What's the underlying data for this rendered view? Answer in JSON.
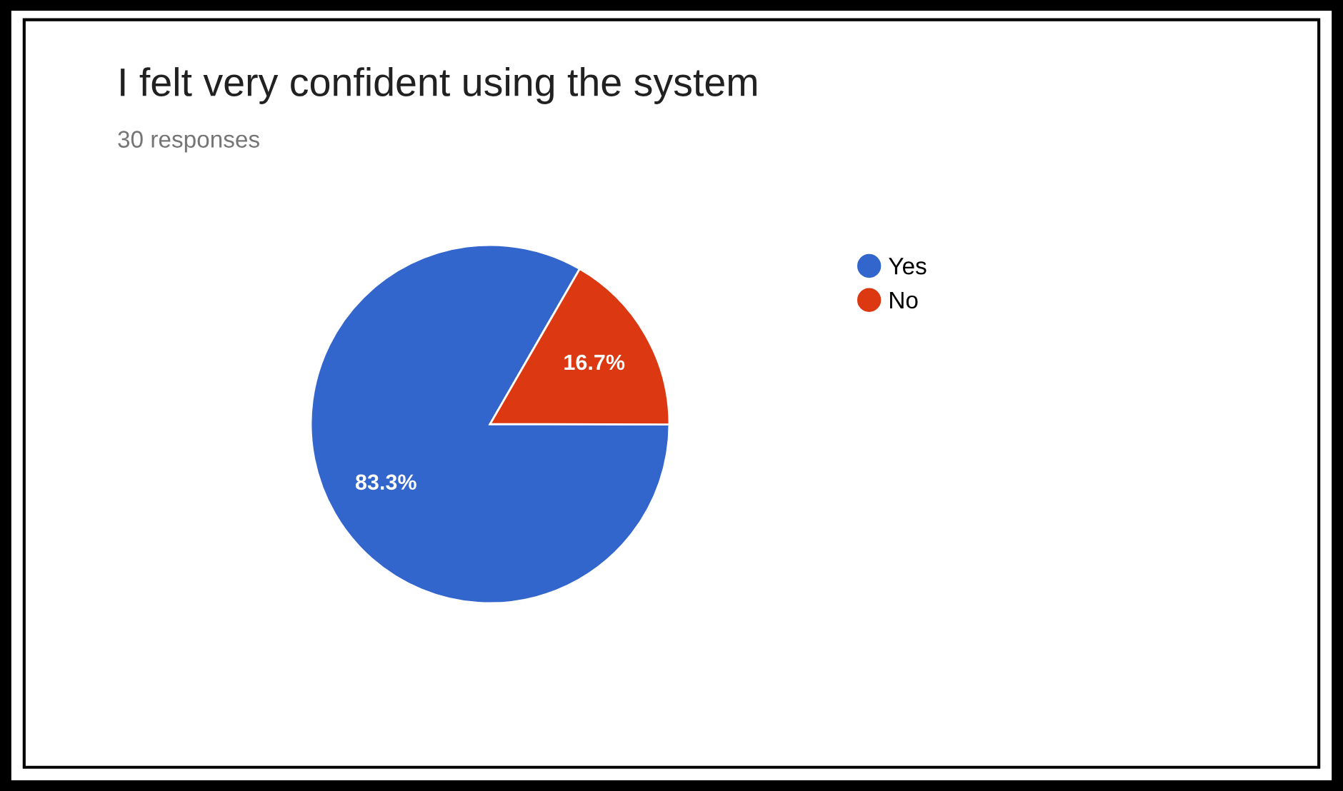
{
  "chart_data": {
    "type": "pie",
    "title": "I felt very confident using the system",
    "subtitle": "30 responses",
    "categories": [
      "Yes",
      "No"
    ],
    "values": [
      83.3,
      16.7
    ],
    "colors": [
      "#3366cc",
      "#dc3912"
    ],
    "value_labels": [
      "83.3%",
      "16.7%"
    ],
    "legend": "right"
  }
}
